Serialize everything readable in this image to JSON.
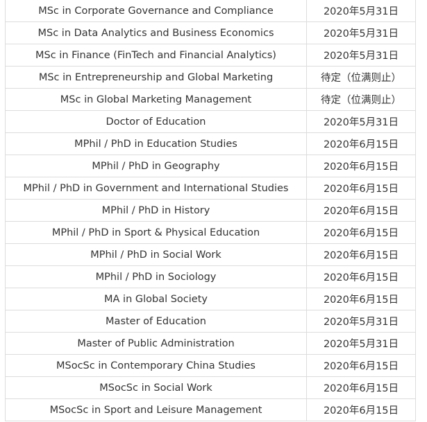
{
  "rows": [
    {
      "program": "MSc in Corporate Governance and Compliance",
      "deadline": "2020年5月31日"
    },
    {
      "program": "MSc in Data Analytics and Business Economics",
      "deadline": "2020年5月31日"
    },
    {
      "program": "MSc in Finance (FinTech and Financial Analytics)",
      "deadline": "2020年5月31日"
    },
    {
      "program": "MSc in Entrepreneurship and Global Marketing",
      "deadline": "待定（位满则止）"
    },
    {
      "program": "MSc in Global Marketing Management",
      "deadline": "待定（位满则止）"
    },
    {
      "program": "Doctor of Education",
      "deadline": "2020年5月31日"
    },
    {
      "program": "MPhil / PhD in Education Studies",
      "deadline": "2020年6月15日"
    },
    {
      "program": "MPhil / PhD in Geography",
      "deadline": "2020年6月15日"
    },
    {
      "program": "MPhil / PhD in Government and International Studies",
      "deadline": "2020年6月15日"
    },
    {
      "program": "MPhil / PhD in History",
      "deadline": "2020年6月15日"
    },
    {
      "program": "MPhil / PhD in Sport & Physical Education",
      "deadline": "2020年6月15日"
    },
    {
      "program": "MPhil / PhD in Social Work",
      "deadline": "2020年6月15日"
    },
    {
      "program": "MPhil / PhD in Sociology",
      "deadline": "2020年6月15日"
    },
    {
      "program": "MA in Global Society",
      "deadline": "2020年6月15日"
    },
    {
      "program": "Master of Education",
      "deadline": "2020年5月31日"
    },
    {
      "program": "Master of Public Administration",
      "deadline": "2020年5月31日"
    },
    {
      "program": "MSocSc in Contemporary China Studies",
      "deadline": "2020年6月15日"
    },
    {
      "program": "MSocSc in Social Work",
      "deadline": "2020年6月15日"
    },
    {
      "program": "MSocSc in Sport and Leisure Management",
      "deadline": "2020年6月15日"
    }
  ]
}
